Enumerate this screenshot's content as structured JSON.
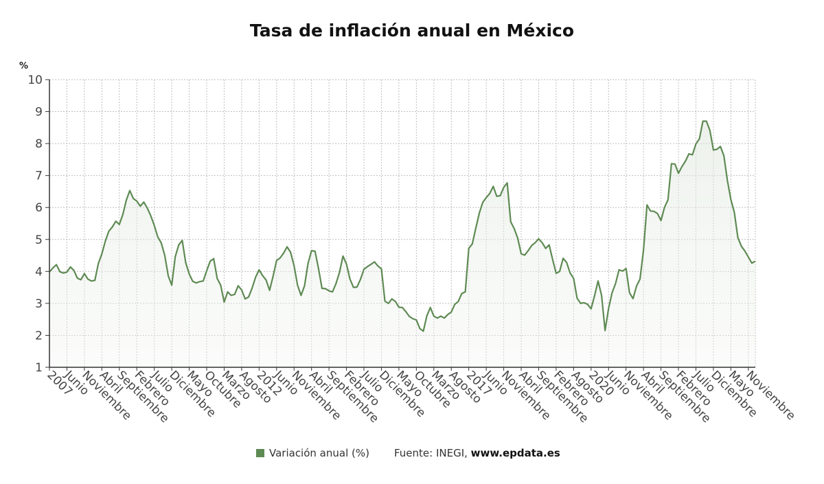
{
  "title": "Tasa de inflación anual en México",
  "y_unit": "%",
  "legend": {
    "label": "Variación anual (%)",
    "swatch_color": "#5e8a53"
  },
  "source": {
    "prefix": "Fuente: INEGI, ",
    "site": "www.epdata.es"
  },
  "colors": {
    "line": "#5e8a53",
    "fill_top": "#dfe7dc",
    "grid": "#bdbdbd",
    "axis": "#333333"
  },
  "chart_data": {
    "type": "area",
    "title": "Tasa de inflación anual en México",
    "ylabel": "%",
    "ylim": [
      1,
      10
    ],
    "yticks": [
      1,
      2,
      3,
      4,
      5,
      6,
      7,
      8,
      9,
      10
    ],
    "grid": true,
    "legend_position": "bottom",
    "x_start": "2007-01",
    "x_end": "2023-11",
    "x_tick_labels": [
      "2007",
      "Junio",
      "Noviembre",
      "Abril",
      "Septiembre",
      "Febrero",
      "Julio",
      "Diciembre",
      "Mayo",
      "Octubre",
      "Marzo",
      "Agosto",
      "2012",
      "Junio",
      "Noviembre",
      "Abril",
      "Septiembre",
      "Febrero",
      "Julio",
      "Diciembre",
      "Mayo",
      "Octubre",
      "Marzo",
      "Agosto",
      "2017",
      "Junio",
      "Noviembre",
      "Abril",
      "Septiembre",
      "Febrero",
      "Agosto",
      "2020",
      "Junio",
      "Noviembre",
      "Abril",
      "Septiembre",
      "Febrero",
      "Julio",
      "Diciembre",
      "Mayo",
      "Noviembre"
    ],
    "series": [
      {
        "name": "Variación anual (%)",
        "values": [
          3.98,
          4.11,
          4.21,
          3.99,
          3.95,
          3.98,
          4.14,
          4.03,
          3.79,
          3.74,
          3.93,
          3.76,
          3.7,
          3.72,
          4.25,
          4.55,
          4.95,
          5.26,
          5.39,
          5.57,
          5.47,
          5.78,
          6.23,
          6.53,
          6.28,
          6.2,
          6.04,
          6.17,
          5.98,
          5.74,
          5.44,
          5.08,
          4.89,
          4.5,
          3.86,
          3.57,
          4.46,
          4.83,
          4.97,
          4.27,
          3.92,
          3.69,
          3.64,
          3.68,
          3.7,
          4.02,
          4.32,
          4.4,
          3.78,
          3.57,
          3.04,
          3.36,
          3.25,
          3.28,
          3.55,
          3.42,
          3.14,
          3.2,
          3.48,
          3.82,
          4.05,
          3.87,
          3.73,
          3.41,
          3.85,
          4.34,
          4.42,
          4.57,
          4.77,
          4.6,
          4.18,
          3.57,
          3.25,
          3.55,
          4.25,
          4.65,
          4.63,
          4.09,
          3.47,
          3.46,
          3.39,
          3.36,
          3.62,
          3.97,
          4.48,
          4.23,
          3.76,
          3.5,
          3.51,
          3.75,
          4.07,
          4.15,
          4.22,
          4.3,
          4.17,
          4.08,
          3.07,
          3.0,
          3.14,
          3.06,
          2.88,
          2.87,
          2.74,
          2.59,
          2.52,
          2.48,
          2.21,
          2.13,
          2.61,
          2.87,
          2.6,
          2.54,
          2.6,
          2.54,
          2.65,
          2.73,
          2.97,
          3.06,
          3.31,
          3.36,
          4.72,
          4.86,
          5.35,
          5.82,
          6.16,
          6.31,
          6.44,
          6.66,
          6.35,
          6.37,
          6.63,
          6.77,
          5.55,
          5.34,
          5.04,
          4.55,
          4.51,
          4.65,
          4.81,
          4.9,
          5.02,
          4.9,
          4.72,
          4.83,
          4.37,
          3.94,
          4.0,
          4.41,
          4.28,
          3.95,
          3.78,
          3.16,
          3.0,
          3.02,
          2.97,
          2.83,
          3.24,
          3.7,
          3.25,
          2.15,
          2.84,
          3.33,
          3.62,
          4.05,
          4.01,
          4.09,
          3.33,
          3.15,
          3.54,
          3.76,
          4.67,
          6.08,
          5.89,
          5.88,
          5.81,
          5.59,
          6.0,
          6.24,
          7.37,
          7.36,
          7.07,
          7.28,
          7.45,
          7.68,
          7.65,
          7.99,
          8.15,
          8.7,
          8.7,
          8.41,
          7.8,
          7.82,
          7.91,
          7.62,
          6.85,
          6.25,
          5.84,
          5.06,
          4.79,
          4.64,
          4.45,
          4.26,
          4.32
        ]
      }
    ]
  }
}
